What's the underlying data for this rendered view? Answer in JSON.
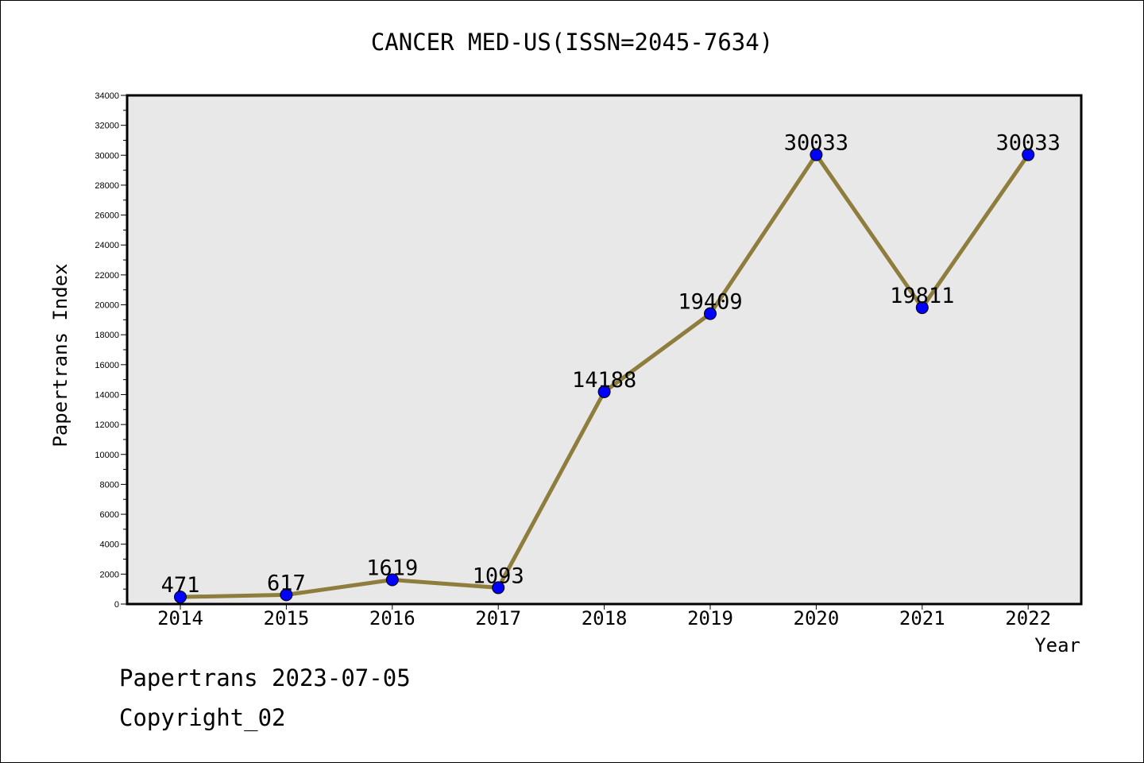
{
  "chart_data": {
    "type": "line",
    "title": "CANCER MED-US(ISSN=2045-7634)",
    "xlabel": "Year",
    "ylabel": "Papertrans Index",
    "categories": [
      "2014",
      "2015",
      "2016",
      "2017",
      "2018",
      "2019",
      "2020",
      "2021",
      "2022"
    ],
    "values": [
      471,
      617,
      1619,
      1093,
      14188,
      19409,
      30033,
      19811,
      30033
    ],
    "ylim": [
      0,
      34000
    ],
    "yticks": [
      "0",
      "2000",
      "4000",
      "6000",
      "8000",
      "10000",
      "12000",
      "14000",
      "16000",
      "18000",
      "20000",
      "22000",
      "24000",
      "26000",
      "28000",
      "30000",
      "32000",
      "34000"
    ],
    "grid": false,
    "colors": {
      "line": "#8e7d3c",
      "marker": "#0000ff",
      "plot_bg": "#e8e8e8"
    }
  },
  "footer": {
    "line1": "Papertrans 2023-07-05",
    "line2": "Copyright_02"
  }
}
